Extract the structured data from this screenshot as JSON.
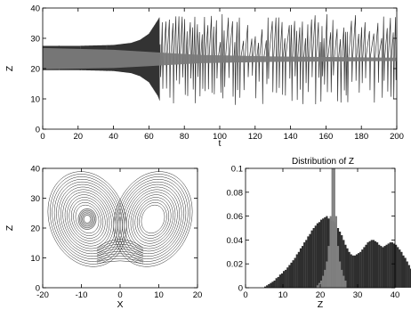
{
  "chart_data": [
    {
      "id": "timeseries",
      "type": "line",
      "xlabel": "t",
      "ylabel": "Z",
      "xlim": [
        0,
        200
      ],
      "ylim": [
        0,
        40
      ],
      "xticks": [
        0,
        20,
        40,
        60,
        80,
        100,
        120,
        140,
        160,
        180,
        200
      ],
      "yticks": [
        0,
        10,
        20,
        30,
        40
      ],
      "grid": false,
      "series": [
        {
          "color": "#333333",
          "envelope": [
            {
              "t": 0,
              "min": 19.5,
              "max": 27.5
            },
            {
              "t": 20,
              "min": 19.5,
              "max": 27.5
            },
            {
              "t": 40,
              "min": 19.2,
              "max": 27.8
            },
            {
              "t": 50,
              "min": 18.5,
              "max": 28.5
            },
            {
              "t": 55,
              "min": 17.5,
              "max": 29.5
            },
            {
              "t": 60,
              "min": 15.5,
              "max": 31.5
            },
            {
              "t": 65,
              "min": 11,
              "max": 36
            },
            {
              "t": 67,
              "min": 8,
              "max": 38
            },
            {
              "t": 80,
              "min": 6.5,
              "max": 38
            },
            {
              "t": 200,
              "min": 6.5,
              "max": 38
            }
          ],
          "mean": 23
        },
        {
          "color": "#7a7a7a",
          "band": [
            {
              "t": 0,
              "min": 19.8,
              "max": 26.8
            },
            {
              "t": 40,
              "min": 20.2,
              "max": 26.2
            },
            {
              "t": 60,
              "min": 20.8,
              "max": 25.5
            },
            {
              "t": 90,
              "min": 21.8,
              "max": 24.5
            },
            {
              "t": 130,
              "min": 22.2,
              "max": 24.0
            },
            {
              "t": 200,
              "min": 22.5,
              "max": 23.6
            }
          ]
        }
      ]
    },
    {
      "id": "phase",
      "type": "line",
      "xlabel": "X",
      "ylabel": "Z",
      "xlim": [
        -20,
        20
      ],
      "ylim": [
        0,
        40
      ],
      "xticks": [
        -20,
        -10,
        0,
        10,
        20
      ],
      "yticks": [
        0,
        10,
        20,
        30,
        40
      ],
      "grid": false,
      "attractor": {
        "left_focus": [
          -8.5,
          23
        ],
        "right_focus": [
          8.5,
          23
        ],
        "outer_x_extent": [
          -17,
          17
        ],
        "z_extent": [
          6,
          38
        ]
      },
      "series": [
        {
          "color": "#2b2b2b",
          "kind": "orbit"
        },
        {
          "color": "#7f7f7f",
          "kind": "inner-cycle"
        }
      ]
    },
    {
      "id": "histogram",
      "type": "bar",
      "title": "Distribution of Z",
      "xlabel": "Z",
      "ylabel": "",
      "xlim": [
        0,
        40
      ],
      "ylim": [
        0,
        0.1
      ],
      "xticks": [
        0,
        10,
        20,
        30,
        40
      ],
      "yticks": [
        0,
        0.02,
        0.04,
        0.06,
        0.08,
        0.1
      ],
      "ytick_labels": [
        "0",
        "0.02",
        "0.04",
        "0.06",
        "0.08",
        "0.1"
      ],
      "grid": false,
      "series": [
        {
          "color": "#2e2e2e",
          "bin_start": 5,
          "bin_width": 0.5,
          "values": [
            0.001,
            0.002,
            0.003,
            0.004,
            0.005,
            0.006,
            0.008,
            0.009,
            0.011,
            0.012,
            0.014,
            0.015,
            0.017,
            0.019,
            0.021,
            0.023,
            0.025,
            0.028,
            0.03,
            0.033,
            0.035,
            0.038,
            0.04,
            0.043,
            0.045,
            0.048,
            0.05,
            0.052,
            0.054,
            0.055,
            0.057,
            0.058,
            0.059,
            0.06,
            0.058,
            0.059,
            0.056,
            0.055,
            0.053,
            0.05,
            0.047,
            0.044,
            0.04,
            0.036,
            0.033,
            0.03,
            0.028,
            0.027,
            0.027,
            0.028,
            0.029,
            0.03,
            0.032,
            0.034,
            0.036,
            0.038,
            0.039,
            0.04,
            0.04,
            0.039,
            0.038,
            0.036,
            0.035,
            0.034,
            0.035,
            0.036,
            0.037,
            0.038,
            0.038,
            0.037,
            0.036,
            0.034,
            0.032,
            0.03,
            0.027,
            0.025,
            0.022,
            0.019,
            0.016,
            0.013,
            0.01,
            0.007,
            0.005,
            0.003,
            0.002,
            0.001,
            0.001
          ]
        },
        {
          "color": "#808080",
          "bin_start": 19,
          "bin_width": 0.5,
          "values": [
            0.002,
            0.004,
            0.006,
            0.01,
            0.015,
            0.022,
            0.035,
            0.06,
            0.1,
            0.1,
            0.06,
            0.035,
            0.022,
            0.015,
            0.01,
            0.006
          ]
        }
      ]
    }
  ]
}
